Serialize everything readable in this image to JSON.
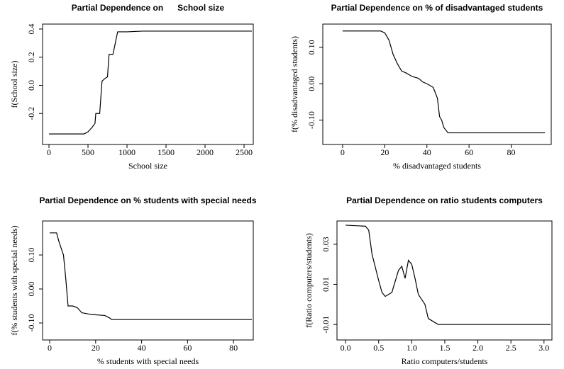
{
  "chart_data": [
    {
      "type": "line",
      "title": "Partial Dependence on      School size",
      "xlabel": "School size",
      "ylabel": "f(School size)",
      "x": [
        0,
        450,
        500,
        550,
        590,
        600,
        650,
        680,
        720,
        750,
        770,
        820,
        850,
        880,
        1000,
        1200,
        2600
      ],
      "values": [
        -0.345,
        -0.345,
        -0.33,
        -0.3,
        -0.27,
        -0.2,
        -0.2,
        0.03,
        0.05,
        0.06,
        0.22,
        0.22,
        0.3,
        0.38,
        0.38,
        0.385,
        0.385
      ],
      "color": "#000000",
      "xlim": [
        -82,
        2618
      ],
      "ylim": [
        -0.42,
        0.435
      ],
      "xticks": [
        0,
        500,
        1000,
        1500,
        2000,
        2500
      ],
      "yticks": [
        -0.2,
        {
          "value": 0,
          "label": "0.0"
        },
        0.2,
        0.4
      ]
    },
    {
      "type": "line",
      "title": "Partial Dependence on % of disadvantaged students",
      "xlabel": "% disadvantaged students",
      "ylabel": "f(% disadvantaged students)",
      "x": [
        0,
        18,
        20,
        22,
        24,
        26,
        28,
        30,
        33,
        36,
        38,
        40,
        43,
        45,
        46,
        47,
        48,
        50,
        96
      ],
      "values": [
        0.145,
        0.145,
        0.14,
        0.12,
        0.08,
        0.055,
        0.035,
        0.03,
        0.02,
        0.015,
        0.005,
        0,
        -0.01,
        -0.04,
        -0.09,
        -0.1,
        -0.12,
        -0.135,
        -0.135
      ],
      "color": "#000000",
      "xlim": [
        -9.4,
        99
      ],
      "ylim": [
        -0.167,
        0.164
      ],
      "xticks": [
        0,
        20,
        40,
        60,
        80
      ],
      "yticks": [
        {
          "value": -0.1,
          "label": "-0.10"
        },
        {
          "value": 0,
          "label": "0.00"
        },
        {
          "value": 0.1,
          "label": "0.10"
        }
      ]
    },
    {
      "type": "line",
      "title": "Partial Dependence on % students with special needs",
      "xlabel": "% students with special needs",
      "ylabel": "f(% students with special needs)",
      "x": [
        0,
        3,
        4,
        5,
        6,
        7,
        8,
        10,
        12,
        14,
        18,
        24,
        26,
        27,
        88
      ],
      "values": [
        0.165,
        0.165,
        0.14,
        0.12,
        0.1,
        0.03,
        -0.05,
        -0.05,
        -0.055,
        -0.07,
        -0.075,
        -0.078,
        -0.085,
        -0.09,
        -0.09
      ],
      "color": "#000000",
      "xlim": [
        -3.1,
        88.6
      ],
      "ylim": [
        -0.15,
        0.2
      ],
      "xticks": [
        0,
        20,
        40,
        60,
        80
      ],
      "yticks": [
        {
          "value": -0.1,
          "label": "-0.10"
        },
        {
          "value": 0,
          "label": "0.00"
        },
        {
          "value": 0.1,
          "label": "0.10"
        }
      ]
    },
    {
      "type": "line",
      "title": "Partial Dependence on ratio students computers",
      "xlabel": "Ratio computers/students",
      "ylabel": "f(Ratio computers/students)",
      "x": [
        0,
        0.3,
        0.35,
        0.4,
        0.5,
        0.55,
        0.6,
        0.7,
        0.8,
        0.85,
        0.9,
        0.95,
        1.0,
        1.05,
        1.1,
        1.2,
        1.25,
        1.4,
        1.5,
        3.1
      ],
      "values": [
        0.0395,
        0.039,
        0.037,
        0.025,
        0.012,
        0.006,
        0.004,
        0.006,
        0.017,
        0.019,
        0.013,
        0.022,
        0.02,
        0.013,
        0.005,
        0,
        -0.007,
        -0.01,
        -0.01,
        -0.01
      ],
      "color": "#000000",
      "xlim": [
        -0.13,
        3.12
      ],
      "ylim": [
        -0.0177,
        0.0416
      ],
      "xticks": [
        {
          "value": 0,
          "label": "0.0"
        },
        0.5,
        {
          "value": 1,
          "label": "1.0"
        },
        1.5,
        {
          "value": 2,
          "label": "2.0"
        },
        2.5,
        {
          "value": 3,
          "label": "3.0"
        }
      ],
      "yticks": [
        -0.01,
        0.01,
        0.03
      ]
    }
  ]
}
